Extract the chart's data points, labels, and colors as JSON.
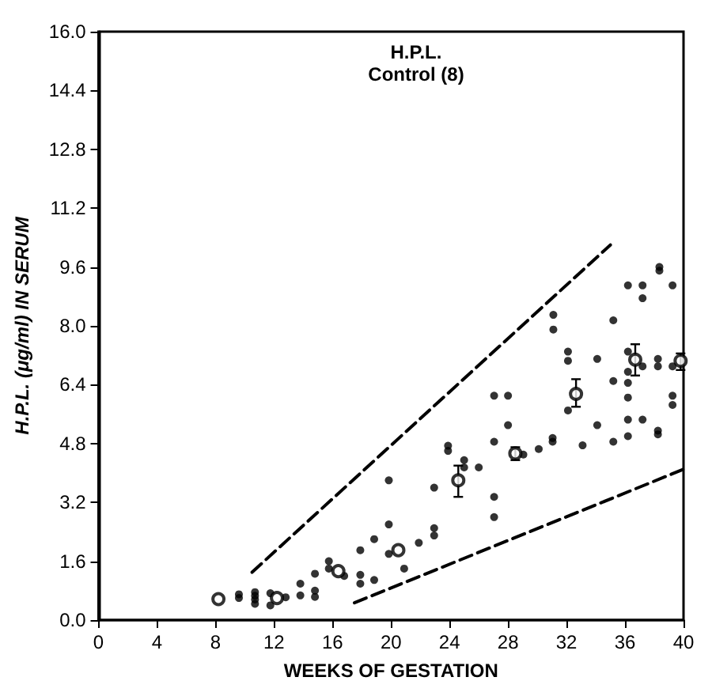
{
  "chart_data": {
    "type": "scatter",
    "title": "H.P.L.",
    "subtitle": "Control (8)",
    "xlabel": "WEEKS OF GESTATION",
    "ylabel": "H.P.L. (μg/ml) IN SERUM",
    "xlim": [
      0,
      40
    ],
    "xticks": [
      0,
      4,
      8,
      12,
      16,
      20,
      24,
      28,
      32,
      36,
      40
    ],
    "ylim": [
      0,
      16
    ],
    "yticks": [
      {
        "value": 0,
        "label": "0.0"
      },
      1.6,
      3.2,
      4.8,
      6.4,
      {
        "value": 8,
        "label": "8.0"
      },
      9.6,
      11.2,
      12.8,
      14.4,
      {
        "value": 16,
        "label": "16.0"
      }
    ],
    "grid": false,
    "marker": "circle",
    "series": [
      {
        "color": "#000000",
        "x": [
          9.6,
          9.6,
          10.7,
          10.7,
          10.7,
          10.7,
          11.75,
          11.75,
          12.8,
          13.8,
          13.8,
          14.8,
          14.8,
          14.8,
          15.75,
          15.75,
          16.8,
          17.9,
          17.9,
          17.9,
          18.85,
          18.85,
          19.85,
          19.85,
          19.85,
          20.9,
          21.9,
          22.95,
          22.95,
          22.95,
          23.9,
          23.9,
          25.0,
          25.0,
          26.0,
          27.05,
          27.05,
          27.05,
          27.05,
          28.0,
          28.0,
          29.05,
          30.1,
          31.05,
          31.05,
          31.1,
          31.1,
          32.1,
          32.1,
          32.1,
          33.1,
          34.1,
          34.1,
          35.2,
          35.2,
          35.2,
          36.2,
          36.2,
          36.2,
          36.2,
          36.2,
          36.2,
          36.2,
          37.2,
          37.2,
          37.2,
          37.2,
          38.25,
          38.25,
          38.25,
          38.25,
          38.35,
          38.35,
          39.25,
          39.25,
          39.25,
          39.25
        ],
        "values": [
          0.6,
          0.7,
          0.76,
          0.66,
          0.56,
          0.44,
          0.73,
          0.4,
          0.62,
          0.99,
          0.67,
          1.26,
          0.8,
          0.63,
          1.6,
          1.4,
          1.2,
          1.9,
          1.23,
          0.99,
          2.2,
          1.09,
          3.8,
          2.6,
          1.8,
          1.4,
          2.1,
          3.6,
          2.5,
          2.3,
          4.74,
          4.6,
          4.35,
          4.15,
          4.15,
          6.1,
          4.85,
          3.35,
          2.8,
          6.1,
          5.3,
          4.5,
          4.65,
          4.95,
          4.85,
          8.3,
          7.9,
          7.3,
          7.05,
          5.7,
          4.75,
          7.1,
          5.3,
          8.15,
          6.5,
          4.85,
          9.1,
          7.3,
          6.75,
          6.45,
          6.05,
          5.45,
          5.0,
          9.1,
          8.75,
          6.9,
          5.45,
          7.1,
          6.9,
          5.15,
          5.05,
          9.6,
          9.5,
          9.1,
          6.9,
          6.1,
          5.85
        ]
      },
      {
        "color": "#000000",
        "x": [
          8.2,
          12.2,
          16.4,
          20.5,
          24.6,
          28.5,
          32.65,
          36.7,
          39.8
        ],
        "values": [
          0.57,
          0.6,
          1.33,
          1.9,
          3.8,
          4.53,
          6.15,
          7.08,
          7.05
        ],
        "errors": [
          null,
          null,
          null,
          null,
          [
            3.35,
            4.2
          ],
          [
            4.35,
            4.7
          ],
          [
            5.8,
            6.55
          ],
          [
            6.65,
            7.5
          ],
          [
            6.8,
            7.25
          ]
        ]
      },
      {
        "type": "line",
        "color": "#000000",
        "line_style": "dashed",
        "marker": "none",
        "x": [
          10.5,
          35
        ],
        "values": [
          1.3,
          10.2
        ]
      },
      {
        "type": "line",
        "color": "#000000",
        "line_style": "dashed",
        "marker": "none",
        "x": [
          17.5,
          40
        ],
        "values": [
          0.47,
          4.1
        ]
      }
    ]
  }
}
